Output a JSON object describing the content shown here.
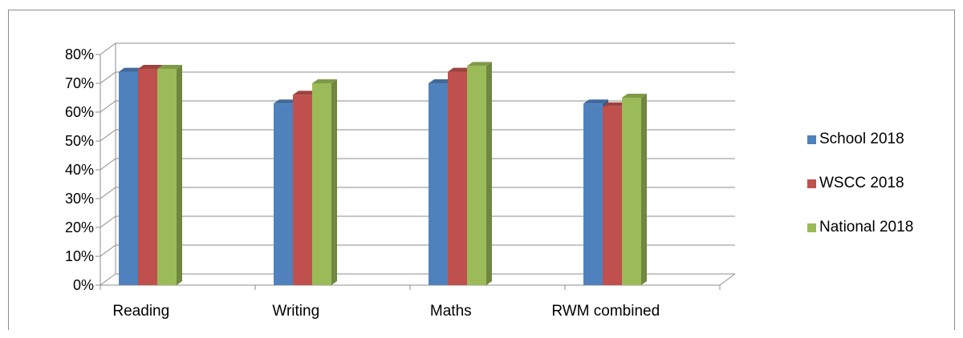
{
  "chart_data": {
    "type": "bar",
    "style": "3d-clustered-column",
    "categories": [
      "Reading",
      "Writing",
      "Maths",
      "RWM combined"
    ],
    "series": [
      {
        "name": "School 2018",
        "values": [
          74,
          63,
          70,
          63
        ],
        "color": "#4f81bd"
      },
      {
        "name": "WSCC 2018",
        "values": [
          75,
          66,
          74,
          62
        ],
        "color": "#c0504d"
      },
      {
        "name": "National 2018",
        "values": [
          75,
          70,
          76,
          65
        ],
        "color": "#9bbb59"
      }
    ],
    "ylim": [
      0,
      80
    ],
    "yticks": [
      "0%",
      "10%",
      "20%",
      "30%",
      "40%",
      "50%",
      "60%",
      "70%",
      "80%"
    ],
    "title": "",
    "xlabel": "",
    "ylabel": "",
    "grid": true,
    "legend_position": "right"
  }
}
